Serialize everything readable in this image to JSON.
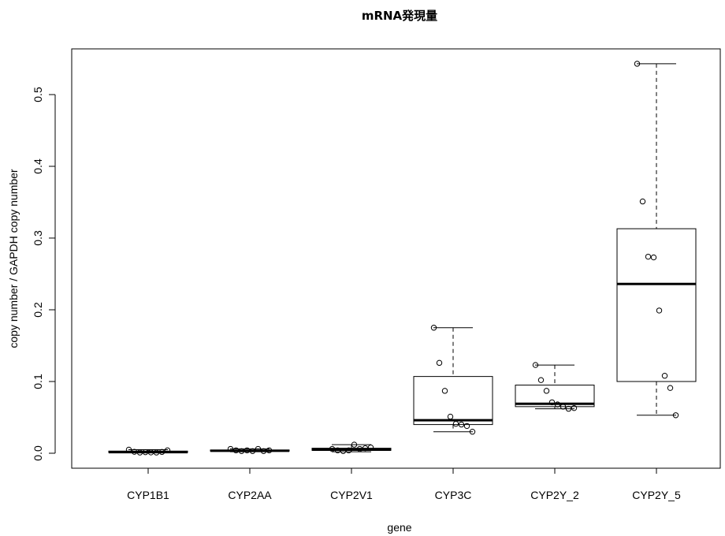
{
  "chart_data": {
    "type": "boxplot",
    "title": "mRNA発現量",
    "xlabel": "gene",
    "ylabel": "copy number / GAPDH copy number",
    "ylim": [
      -0.02,
      0.56
    ],
    "yticks": [
      0.0,
      0.1,
      0.2,
      0.3,
      0.4,
      0.5
    ],
    "ytick_labels": [
      "0.0",
      "0.1",
      "0.2",
      "0.3",
      "0.4",
      "0.5"
    ],
    "grid": false,
    "legend": "none",
    "categories": [
      "CYP1B1",
      "CYP2AA",
      "CYP2V1",
      "CYP3C",
      "CYP2Y_2",
      "CYP2Y_5"
    ],
    "boxes": [
      {
        "category": "CYP1B1",
        "whisker_low": 0.0005,
        "q1": 0.001,
        "median": 0.0015,
        "q3": 0.003,
        "whisker_high": 0.005,
        "points": [
          0.005,
          0.002,
          0.001,
          0.0015,
          0.0012,
          0.001,
          0.0018,
          0.004
        ]
      },
      {
        "category": "CYP2AA",
        "whisker_low": 0.002,
        "q1": 0.003,
        "median": 0.0035,
        "q3": 0.0045,
        "whisker_high": 0.006,
        "points": [
          0.006,
          0.004,
          0.003,
          0.004,
          0.003,
          0.006,
          0.003,
          0.004
        ]
      },
      {
        "category": "CYP2V1",
        "whisker_low": 0.002,
        "q1": 0.004,
        "median": 0.005,
        "q3": 0.007,
        "whisker_high": 0.012,
        "points": [
          0.006,
          0.004,
          0.003,
          0.004,
          0.012,
          0.006,
          0.007,
          0.008
        ]
      },
      {
        "category": "CYP3C",
        "whisker_low": 0.03,
        "q1": 0.04,
        "median": 0.046,
        "q3": 0.107,
        "whisker_high": 0.175,
        "points": [
          0.175,
          0.126,
          0.087,
          0.051,
          0.041,
          0.04,
          0.038,
          0.03
        ]
      },
      {
        "category": "CYP2Y_2",
        "whisker_low": 0.062,
        "q1": 0.065,
        "median": 0.069,
        "q3": 0.095,
        "whisker_high": 0.123,
        "points": [
          0.123,
          0.102,
          0.087,
          0.071,
          0.068,
          0.065,
          0.062,
          0.063
        ]
      },
      {
        "category": "CYP2Y_5",
        "whisker_low": 0.053,
        "q1": 0.1,
        "median": 0.236,
        "q3": 0.313,
        "whisker_high": 0.543,
        "points": [
          0.543,
          0.351,
          0.274,
          0.273,
          0.199,
          0.108,
          0.091,
          0.053
        ]
      }
    ]
  }
}
